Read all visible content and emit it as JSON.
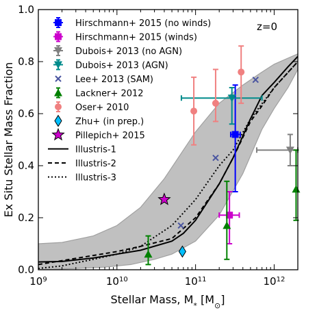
{
  "chart_data": {
    "type": "scatter",
    "xlabel": "Stellar Mass, M",
    "xlabel_sub": "*",
    "xlabel_unit_open": " [M",
    "xlabel_unit_sub": "⊙",
    "xlabel_unit_close": "]",
    "ylabel": "Ex Situ Stellar Mass Fraction",
    "xscale": "log",
    "xlim": [
      1000000000.0,
      2000000000000.0
    ],
    "ylim": [
      0.0,
      1.0
    ],
    "xticks": [
      {
        "value": 1000000000.0,
        "base": "10",
        "exp": "9"
      },
      {
        "value": 10000000000.0,
        "base": "10",
        "exp": "10"
      },
      {
        "value": 100000000000.0,
        "base": "10",
        "exp": "11"
      },
      {
        "value": 1000000000000.0,
        "base": "10",
        "exp": "12"
      }
    ],
    "yticks": [
      {
        "value": 0.0,
        "label": "0.0"
      },
      {
        "value": 0.2,
        "label": "0.2"
      },
      {
        "value": 0.4,
        "label": "0.4"
      },
      {
        "value": 0.6,
        "label": "0.6"
      },
      {
        "value": 0.8,
        "label": "0.8"
      },
      {
        "value": 1.0,
        "label": "1.0"
      }
    ],
    "annotation": "z=0",
    "legend_position": "top-left",
    "band": {
      "upper": [
        [
          1000000000.0,
          0.1
        ],
        [
          2000000000.0,
          0.105
        ],
        [
          5000000000.0,
          0.13
        ],
        [
          10000000000.0,
          0.17
        ],
        [
          20000000000.0,
          0.24
        ],
        [
          40000000000.0,
          0.35
        ],
        [
          70000000000.0,
          0.46
        ],
        [
          100000000000.0,
          0.53
        ],
        [
          200000000000.0,
          0.64
        ],
        [
          400000000000.0,
          0.71
        ],
        [
          700000000000.0,
          0.76
        ],
        [
          1000000000000.0,
          0.79
        ],
        [
          2000000000000.0,
          0.83
        ]
      ],
      "lower": [
        [
          1000000000.0,
          0.0
        ],
        [
          3000000000.0,
          0.005
        ],
        [
          7000000000.0,
          0.01
        ],
        [
          15000000000.0,
          0.02
        ],
        [
          30000000000.0,
          0.04
        ],
        [
          50000000000.0,
          0.06
        ],
        [
          100000000000.0,
          0.11
        ],
        [
          200000000000.0,
          0.21
        ],
        [
          400000000000.0,
          0.37
        ],
        [
          700000000000.0,
          0.54
        ],
        [
          1000000000000.0,
          0.62
        ],
        [
          1500000000000.0,
          0.7
        ],
        [
          2000000000000.0,
          0.77
        ]
      ],
      "color": "#c0c0c0"
    },
    "lines": [
      {
        "name": "Illustris-1",
        "dash": "solid",
        "points": [
          [
            1000000000.0,
            0.03
          ],
          [
            2000000000.0,
            0.032
          ],
          [
            5000000000.0,
            0.045
          ],
          [
            10000000000.0,
            0.06
          ],
          [
            20000000000.0,
            0.075
          ],
          [
            50000000000.0,
            0.11
          ],
          [
            70000000000.0,
            0.14
          ],
          [
            100000000000.0,
            0.19
          ],
          [
            200000000000.0,
            0.33
          ],
          [
            300000000000.0,
            0.43
          ],
          [
            500000000000.0,
            0.58
          ],
          [
            700000000000.0,
            0.67
          ],
          [
            1000000000000.0,
            0.72
          ],
          [
            1500000000000.0,
            0.78
          ],
          [
            2000000000000.0,
            0.82
          ]
        ]
      },
      {
        "name": "Illustris-2",
        "dash": "dashed",
        "points": [
          [
            1000000000.0,
            0.02
          ],
          [
            2000000000.0,
            0.035
          ],
          [
            5000000000.0,
            0.055
          ],
          [
            10000000000.0,
            0.07
          ],
          [
            20000000000.0,
            0.09
          ],
          [
            50000000000.0,
            0.12
          ],
          [
            100000000000.0,
            0.2
          ],
          [
            200000000000.0,
            0.33
          ],
          [
            300000000000.0,
            0.43
          ],
          [
            500000000000.0,
            0.57
          ],
          [
            700000000000.0,
            0.63
          ],
          [
            1000000000000.0,
            0.7
          ],
          [
            2000000000000.0,
            0.8
          ]
        ]
      },
      {
        "name": "Illustris-3",
        "dash": "dotted",
        "points": [
          [
            1000000000.0,
            0.005
          ],
          [
            2000000000.0,
            0.015
          ],
          [
            5000000000.0,
            0.04
          ],
          [
            10000000000.0,
            0.06
          ],
          [
            20000000000.0,
            0.09
          ],
          [
            50000000000.0,
            0.17
          ],
          [
            100000000000.0,
            0.27
          ],
          [
            200000000000.0,
            0.4
          ],
          [
            300000000000.0,
            0.46
          ],
          [
            500000000000.0,
            0.58
          ],
          [
            1000000000000.0,
            0.7
          ],
          [
            2000000000000.0,
            0.8
          ]
        ]
      }
    ],
    "series": [
      {
        "name": "Hirschmann+ 2015 (no winds)",
        "marker": "square",
        "color": "#0000ff",
        "points": [
          {
            "x": 320000000000.0,
            "y": 0.52,
            "xerr": [
              280000000000.0,
              370000000000.0
            ],
            "yerr": [
              0.3,
              0.71
            ]
          }
        ]
      },
      {
        "name": "Hirschmann+ 2015 (winds)",
        "marker": "square",
        "color": "#cc00cc",
        "points": [
          {
            "x": 270000000000.0,
            "y": 0.21,
            "xerr": [
              200000000000.0,
              360000000000.0
            ],
            "yerr": [
              0.1,
              0.3
            ]
          }
        ]
      },
      {
        "name": "Dubois+ 2013 (no AGN)",
        "marker": "tri-down",
        "color": "#808080",
        "points": [
          {
            "x": 1600000000000.0,
            "y": 0.46,
            "xerr": [
              600000000000.0,
              2000000000000.0
            ],
            "yerr": [
              0.4,
              0.52
            ]
          }
        ]
      },
      {
        "name": "Dubois+ 2013 (AGN)",
        "marker": "tri-down",
        "color": "#008b8b",
        "points": [
          {
            "x": 290000000000.0,
            "y": 0.66,
            "xerr": [
              66000000000.0,
              700000000000.0
            ],
            "yerr": [
              0.56,
              0.7
            ]
          }
        ]
      },
      {
        "name": "Lee+ 2013 (SAM)",
        "marker": "x",
        "color": "#4a55a0",
        "points": [
          {
            "x": 65000000000.0,
            "y": 0.17
          },
          {
            "x": 180000000000.0,
            "y": 0.43
          },
          {
            "x": 580000000000.0,
            "y": 0.73
          }
        ]
      },
      {
        "name": "Lackner+ 2012",
        "marker": "tri-up",
        "color": "#008000",
        "points": [
          {
            "x": 25000000000.0,
            "y": 0.06,
            "yerr": [
              0.02,
              0.13
            ]
          },
          {
            "x": 250000000000.0,
            "y": 0.17,
            "yerr": [
              0.04,
              0.34
            ]
          },
          {
            "x": 1900000000000.0,
            "y": 0.31,
            "yerr": [
              0.19,
              0.46
            ]
          }
        ]
      },
      {
        "name": "Oser+ 2010",
        "marker": "circle",
        "color": "#f08080",
        "points": [
          {
            "x": 95000000000.0,
            "y": 0.61,
            "yerr": [
              0.48,
              0.74
            ]
          },
          {
            "x": 180000000000.0,
            "y": 0.64,
            "yerr": [
              0.57,
              0.77
            ]
          },
          {
            "x": 380000000000.0,
            "y": 0.76,
            "yerr": [
              0.64,
              0.86
            ]
          }
        ]
      },
      {
        "name": "Zhu+ (in prep.)",
        "marker": "diamond",
        "color": "#00bfff",
        "points": [
          {
            "x": 68000000000.0,
            "y": 0.07
          }
        ]
      },
      {
        "name": "Pillepich+ 2015",
        "marker": "star",
        "color": "#cc00cc",
        "points": [
          {
            "x": 40000000000.0,
            "y": 0.27
          }
        ]
      }
    ]
  }
}
